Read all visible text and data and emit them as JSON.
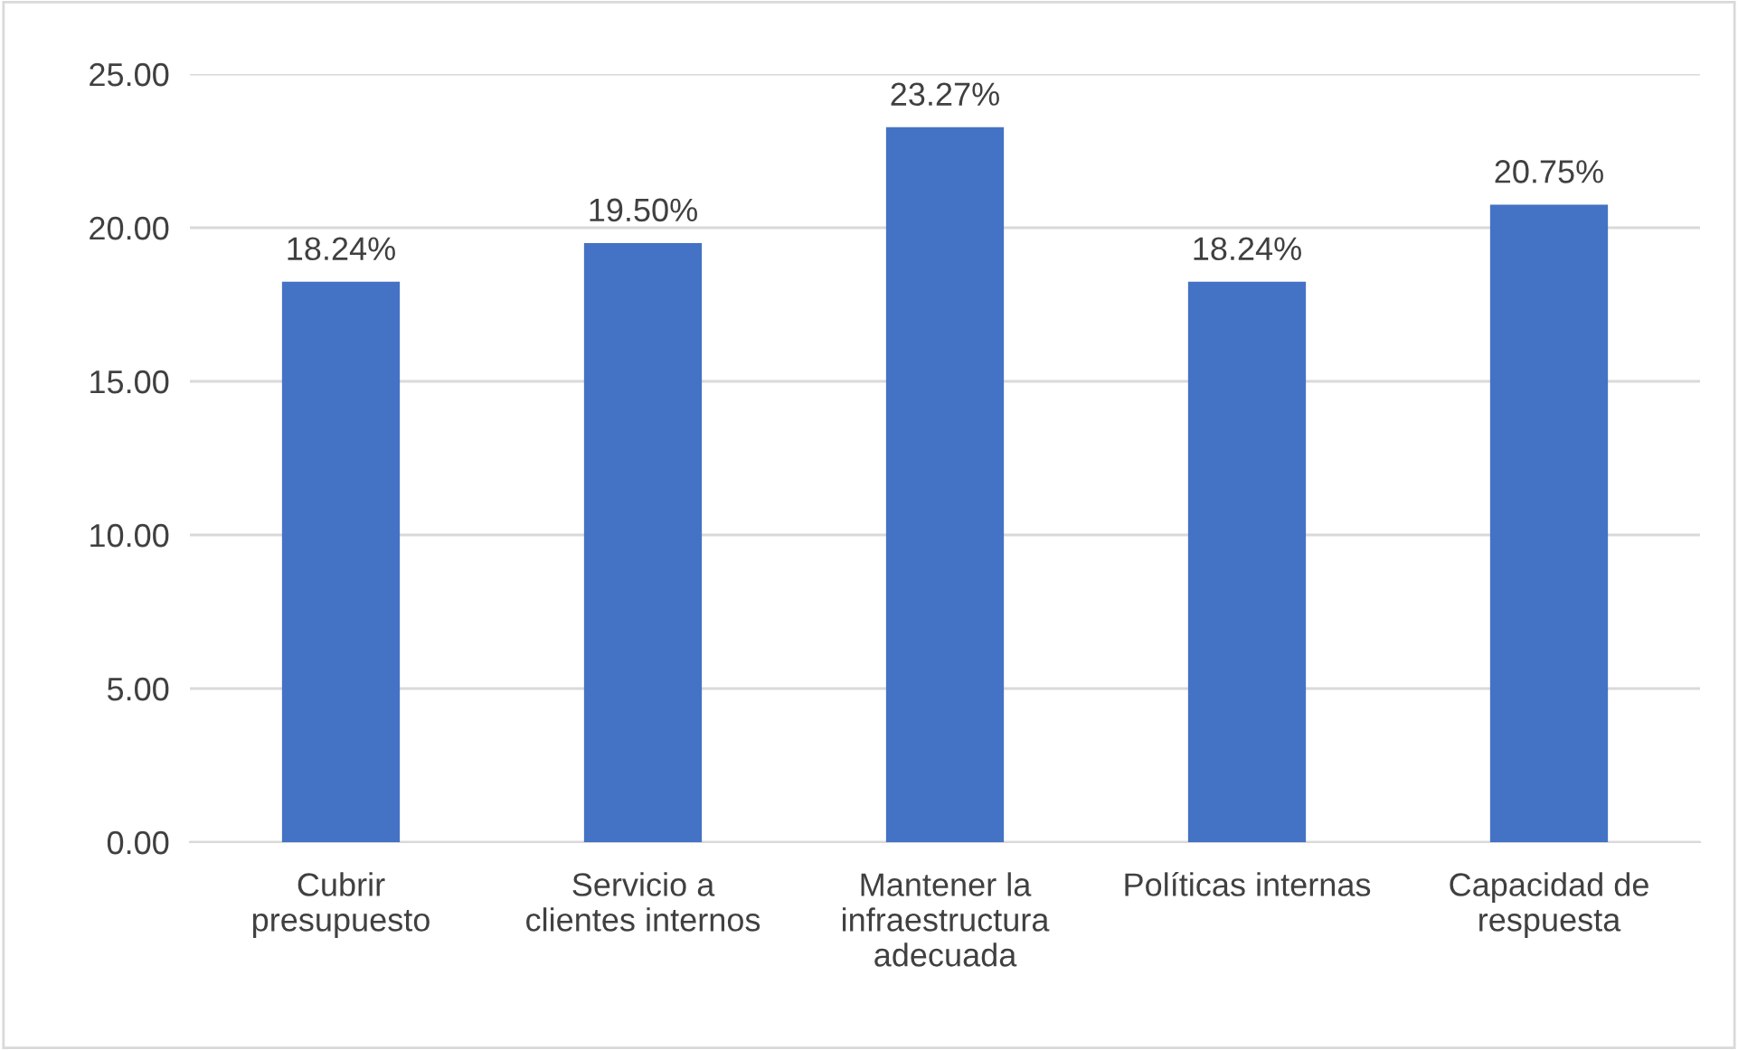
{
  "chart_data": {
    "type": "bar",
    "categories": [
      "Cubrir\npresupuesto",
      "Servicio a\nclientes internos",
      "Mantener la\ninfraestructura\nadecuada",
      "Políticas internas",
      "Capacidad de\nrespuesta"
    ],
    "values": [
      18.24,
      19.5,
      23.27,
      18.24,
      20.75
    ],
    "value_labels": [
      "18.24%",
      "19.50%",
      "23.27%",
      "18.24%",
      "20.75%"
    ],
    "color": "#4472c4",
    "ylim": [
      0,
      25
    ],
    "yticks": [
      {
        "value": 0,
        "label": "0.00"
      },
      {
        "value": 5,
        "label": "5.00"
      },
      {
        "value": 10,
        "label": "10.00"
      },
      {
        "value": 15,
        "label": "15.00"
      },
      {
        "value": 20,
        "label": "20.00"
      },
      {
        "value": 25,
        "label": "25.00"
      }
    ],
    "grid": "y"
  }
}
